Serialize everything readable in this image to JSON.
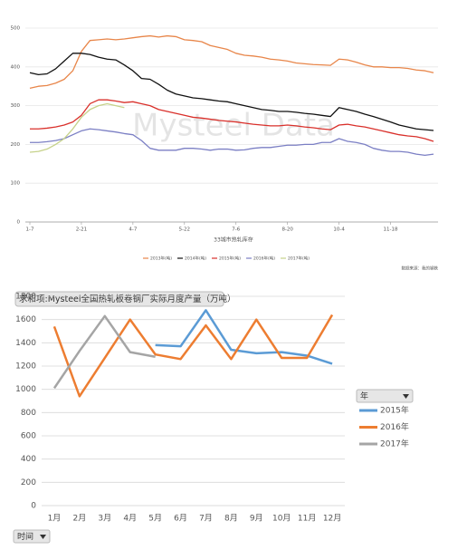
{
  "chart_data": [
    {
      "type": "line",
      "xlabel": "33城市热轧库存",
      "source": "数据来源：我的钢铁",
      "watermark": "Mysteel Data",
      "legend": "bottom",
      "grid": true,
      "categories": [
        "1-7",
        null,
        null,
        null,
        null,
        null,
        "2-21",
        null,
        null,
        null,
        null,
        null,
        "4-7",
        null,
        null,
        null,
        null,
        null,
        "5-22",
        null,
        null,
        null,
        null,
        null,
        "7-6",
        null,
        null,
        null,
        null,
        null,
        "8-20",
        null,
        null,
        null,
        null,
        null,
        "10-4",
        null,
        null,
        null,
        null,
        null,
        "11-18",
        null,
        null,
        null,
        null,
        null
      ],
      "ylim": [
        0,
        500
      ],
      "yticks": [
        0,
        100,
        200,
        300,
        400,
        500
      ],
      "series": [
        {
          "name": "2013年(吨)",
          "color": "#e8864a",
          "values": [
            345,
            350,
            352,
            358,
            368,
            390,
            440,
            468,
            470,
            472,
            470,
            472,
            475,
            478,
            480,
            477,
            480,
            478,
            470,
            468,
            465,
            455,
            450,
            445,
            435,
            430,
            428,
            425,
            420,
            418,
            415,
            410,
            408,
            406,
            405,
            404,
            420,
            418,
            412,
            405,
            400,
            400,
            398,
            398,
            396,
            392,
            390,
            385
          ]
        },
        {
          "name": "2014年(吨)",
          "color": "#111111",
          "values": [
            385,
            380,
            382,
            395,
            415,
            435,
            435,
            432,
            425,
            420,
            418,
            405,
            390,
            370,
            368,
            355,
            340,
            330,
            325,
            320,
            318,
            315,
            312,
            310,
            305,
            300,
            295,
            290,
            288,
            285,
            285,
            283,
            280,
            278,
            275,
            272,
            295,
            290,
            285,
            278,
            272,
            265,
            258,
            250,
            245,
            240,
            238,
            236
          ]
        },
        {
          "name": "2015年(吨)",
          "color": "#d9302b",
          "values": [
            240,
            240,
            242,
            245,
            250,
            258,
            275,
            305,
            315,
            315,
            312,
            308,
            310,
            305,
            300,
            290,
            285,
            280,
            275,
            270,
            268,
            265,
            262,
            260,
            258,
            255,
            252,
            250,
            248,
            248,
            250,
            248,
            245,
            243,
            240,
            238,
            250,
            252,
            248,
            245,
            240,
            235,
            230,
            225,
            222,
            220,
            215,
            208
          ]
        },
        {
          "name": "2016年(吨)",
          "color": "#7b7fc4",
          "values": [
            205,
            205,
            207,
            210,
            215,
            225,
            235,
            240,
            238,
            235,
            232,
            228,
            225,
            210,
            190,
            185,
            185,
            185,
            190,
            190,
            188,
            185,
            188,
            188,
            185,
            186,
            190,
            192,
            192,
            195,
            198,
            198,
            200,
            200,
            205,
            205,
            215,
            208,
            205,
            200,
            190,
            185,
            182,
            182,
            180,
            175,
            172,
            175
          ]
        },
        {
          "name": "2017年(吨)",
          "color": "#c6d28a",
          "values": [
            180,
            182,
            188,
            200,
            215,
            240,
            270,
            290,
            300,
            305,
            300,
            295,
            null,
            null,
            null,
            null,
            null,
            null,
            null,
            null,
            null,
            null,
            null,
            null,
            null,
            null,
            null,
            null,
            null,
            null,
            null,
            null,
            null,
            null,
            null,
            null,
            null,
            null,
            null,
            null,
            null,
            null,
            null,
            null,
            null,
            null,
            null,
            null
          ]
        }
      ]
    },
    {
      "type": "line",
      "title": "求和项:Mysteel全国热轧板卷钢厂实际月度产量（万吨）",
      "legend_title": "年",
      "x_field": "时间",
      "legend": "right",
      "grid": true,
      "categories": [
        "1月",
        "2月",
        "3月",
        "4月",
        "5月",
        "6月",
        "7月",
        "8月",
        "9月",
        "10月",
        "11月",
        "12月"
      ],
      "ylim": [
        0,
        1800
      ],
      "yticks": [
        0,
        200,
        400,
        600,
        800,
        1000,
        1200,
        1400,
        1600,
        1800
      ],
      "series": [
        {
          "name": "2015年",
          "color": "#5b9bd5",
          "values": [
            null,
            null,
            null,
            null,
            1380,
            1370,
            1680,
            1340,
            1310,
            1320,
            1290,
            1220
          ]
        },
        {
          "name": "2016年",
          "color": "#ed7d31",
          "values": [
            1540,
            940,
            1270,
            1600,
            1300,
            1260,
            1550,
            1260,
            1600,
            1270,
            1270,
            1640
          ]
        },
        {
          "name": "2017年",
          "color": "#a5a5a5",
          "values": [
            1010,
            1330,
            1630,
            1320,
            1280,
            null,
            null,
            null,
            null,
            null,
            null,
            null
          ]
        }
      ]
    }
  ]
}
